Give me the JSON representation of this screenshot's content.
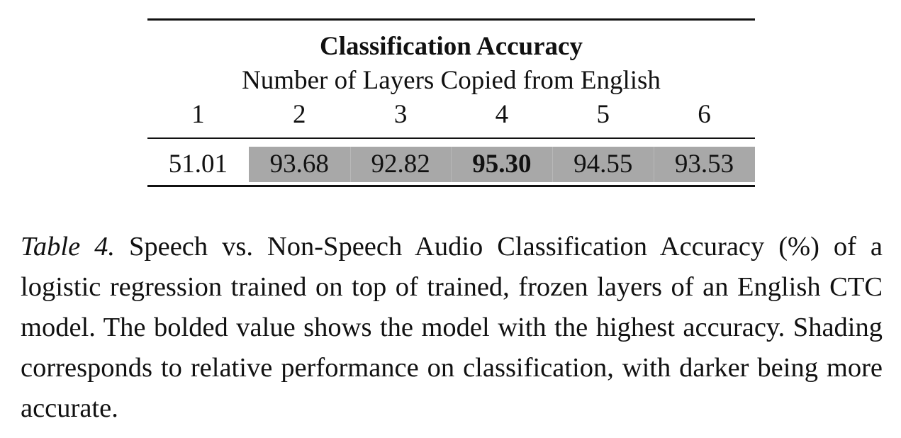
{
  "table": {
    "title": "Classification Accuracy",
    "subtitle": "Number of Layers Copied from English",
    "columns": [
      "1",
      "2",
      "3",
      "4",
      "5",
      "6"
    ],
    "values": [
      "51.01",
      "93.68",
      "92.82",
      "95.30",
      "94.55",
      "93.53"
    ],
    "best_column": "4",
    "shaded_columns": [
      "2",
      "3",
      "4",
      "5",
      "6"
    ],
    "shade_color": "#a8a8a8"
  },
  "caption": {
    "label": "Table 4.",
    "text": "Speech vs.  Non-Speech Audio Classification Accuracy (%) of a logistic regression trained on top of trained, frozen layers of an English CTC model. The bolded value shows the model with the highest accuracy. Shading corresponds to relative performance on classification, with darker being more accurate."
  }
}
